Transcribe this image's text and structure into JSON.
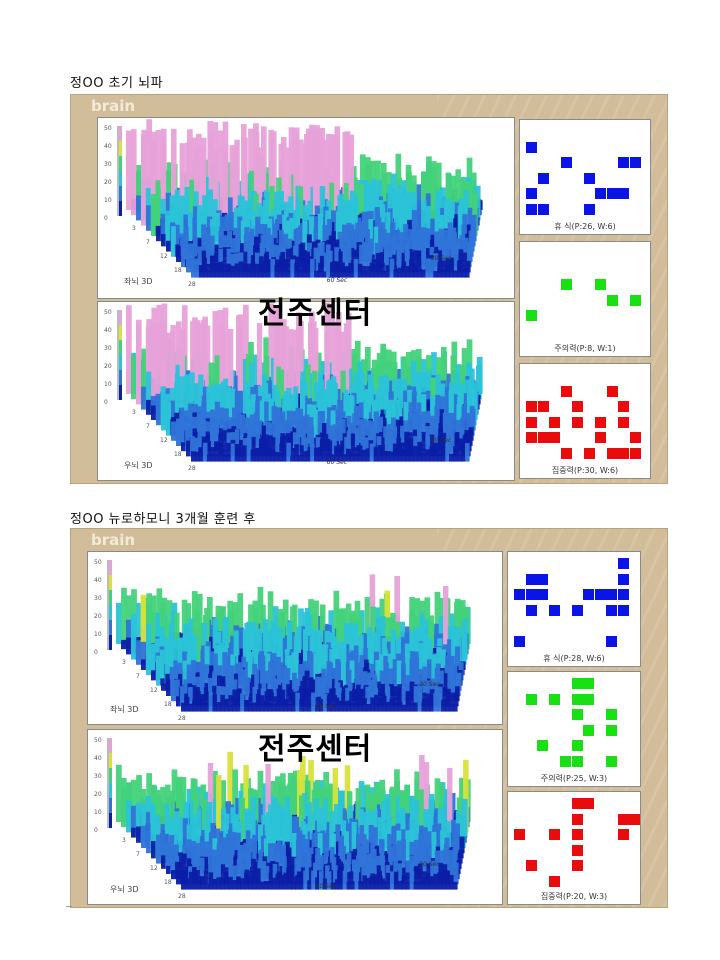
{
  "sections": [
    {
      "title": "정OO 초기 뇌파",
      "brand": "brain",
      "watermark": "전주센터",
      "plots": [
        {
          "label": "좌뇌 3D",
          "y_ticks": [
            "50",
            "40",
            "30",
            "20",
            "10",
            "0"
          ],
          "freq_ticks": [
            "3",
            "7",
            "12",
            "18",
            "28"
          ],
          "time_ticks": [
            "60 Sec",
            "30 Sec"
          ],
          "seed": 11,
          "peak": 1.0
        },
        {
          "label": "우뇌 3D",
          "y_ticks": [
            "50",
            "40",
            "30",
            "20",
            "10",
            "0"
          ],
          "freq_ticks": [
            "3",
            "7",
            "12",
            "18",
            "28"
          ],
          "time_ticks": [
            "60 Sec",
            "30 Sec"
          ],
          "seed": 23,
          "peak": 1.0
        }
      ],
      "grids": [
        {
          "caption": "휴 식(P:26, W:6)",
          "color": "#0a14e6",
          "cells": [
            [
              0,
              1
            ],
            [
              3,
              2
            ],
            [
              8,
              2
            ],
            [
              9,
              2
            ],
            [
              0,
              4
            ],
            [
              1,
              3
            ],
            [
              5,
              3
            ],
            [
              6,
              4
            ],
            [
              7,
              4
            ],
            [
              8,
              4
            ],
            [
              0,
              5
            ],
            [
              1,
              5
            ],
            [
              5,
              5
            ]
          ]
        },
        {
          "caption": "주의력(P:8, W:1)",
          "color": "#18e012",
          "cells": [
            [
              3,
              2
            ],
            [
              6,
              2
            ],
            [
              7,
              3
            ],
            [
              9,
              3
            ],
            [
              0,
              4
            ]
          ]
        },
        {
          "caption": "집중력(P:30, W:6)",
          "color": "#e80c0c",
          "cells": [
            [
              3,
              1
            ],
            [
              7,
              1
            ],
            [
              0,
              2
            ],
            [
              1,
              2
            ],
            [
              4,
              2
            ],
            [
              8,
              2
            ],
            [
              0,
              3
            ],
            [
              2,
              3
            ],
            [
              4,
              3
            ],
            [
              6,
              3
            ],
            [
              8,
              3
            ],
            [
              0,
              4
            ],
            [
              1,
              4
            ],
            [
              2,
              4
            ],
            [
              6,
              4
            ],
            [
              9,
              4
            ],
            [
              3,
              5
            ],
            [
              5,
              5
            ],
            [
              7,
              5
            ],
            [
              8,
              5
            ],
            [
              9,
              5
            ]
          ]
        }
      ]
    },
    {
      "title": "정OO 뉴로하모니 3개월 훈련 후",
      "brand": "brain",
      "watermark": "전주센터",
      "plots": [
        {
          "label": "좌뇌 3D",
          "y_ticks": [
            "50",
            "40",
            "30",
            "20",
            "10",
            "0"
          ],
          "freq_ticks": [
            "3",
            "7",
            "12",
            "18",
            "28"
          ],
          "time_ticks": [
            "60 Sec",
            "30 Sec"
          ],
          "seed": 37,
          "peak": 0.45
        },
        {
          "label": "우뇌 3D",
          "y_ticks": [
            "50",
            "40",
            "30",
            "20",
            "10",
            "0"
          ],
          "freq_ticks": [
            "3",
            "7",
            "12",
            "18",
            "28"
          ],
          "time_ticks": [
            "60 Sec",
            "30 Sec"
          ],
          "seed": 41,
          "peak": 0.45
        }
      ],
      "grids": [
        {
          "caption": "휴 식(P:28, W:6)",
          "color": "#0a14e6",
          "cells": [
            [
              9,
              0
            ],
            [
              1,
              1
            ],
            [
              2,
              1
            ],
            [
              9,
              1
            ],
            [
              0,
              2
            ],
            [
              1,
              2
            ],
            [
              2,
              2
            ],
            [
              6,
              2
            ],
            [
              7,
              2
            ],
            [
              8,
              2
            ],
            [
              9,
              2
            ],
            [
              1,
              3
            ],
            [
              3,
              3
            ],
            [
              5,
              3
            ],
            [
              8,
              3
            ],
            [
              9,
              3
            ],
            [
              0,
              5
            ],
            [
              8,
              5
            ]
          ]
        },
        {
          "caption": "주의력(P:25, W:3)",
          "color": "#18e012",
          "cells": [
            [
              5,
              0
            ],
            [
              6,
              0
            ],
            [
              1,
              1
            ],
            [
              3,
              1
            ],
            [
              5,
              1
            ],
            [
              6,
              1
            ],
            [
              5,
              2
            ],
            [
              8,
              2
            ],
            [
              6,
              3
            ],
            [
              8,
              3
            ],
            [
              2,
              4
            ],
            [
              5,
              4
            ],
            [
              4,
              5
            ],
            [
              5,
              5
            ],
            [
              8,
              5
            ]
          ]
        },
        {
          "caption": "집중력(P:20, W:3)",
          "color": "#e80c0c",
          "cells": [
            [
              5,
              0
            ],
            [
              6,
              0
            ],
            [
              5,
              1
            ],
            [
              9,
              1
            ],
            [
              10,
              1
            ],
            [
              0,
              2
            ],
            [
              3,
              2
            ],
            [
              5,
              2
            ],
            [
              9,
              2
            ],
            [
              5,
              3
            ],
            [
              1,
              4
            ],
            [
              5,
              4
            ],
            [
              3,
              5
            ]
          ]
        }
      ]
    }
  ]
}
